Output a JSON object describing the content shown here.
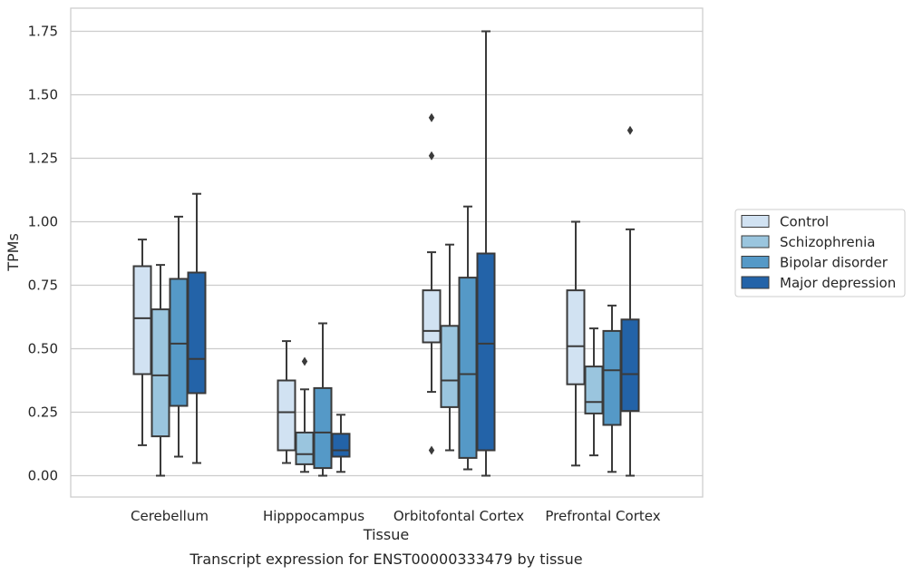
{
  "chart_data": {
    "type": "box",
    "title": "",
    "caption": "Transcript expression for ENST00000333479 by tissue",
    "xlabel": "Tissue",
    "ylabel": "TPMs",
    "ylim": [
      -0.08,
      1.84
    ],
    "yticks": [
      0.0,
      0.25,
      0.5,
      0.75,
      1.0,
      1.25,
      1.5,
      1.75
    ],
    "ytick_labels": [
      "0.00",
      "0.25",
      "0.50",
      "0.75",
      "1.00",
      "1.25",
      "1.50",
      "1.75"
    ],
    "grid": "horizontal",
    "legend": "right",
    "categories": [
      "Cerebellum",
      "Hipppocampus",
      "Orbitofontal Cortex",
      "Prefrontal Cortex"
    ],
    "series": [
      {
        "name": "Control",
        "color": "#d1e2f2",
        "boxes": [
          {
            "whislo": 0.12,
            "q1": 0.4,
            "med": 0.62,
            "q3": 0.825,
            "whishi": 0.93,
            "fliers": []
          },
          {
            "whislo": 0.05,
            "q1": 0.1,
            "med": 0.25,
            "q3": 0.375,
            "whishi": 0.53,
            "fliers": []
          },
          {
            "whislo": 0.33,
            "q1": 0.525,
            "med": 0.57,
            "q3": 0.73,
            "whishi": 0.88,
            "fliers": [
              0.1,
              1.26,
              1.41
            ]
          },
          {
            "whislo": 0.04,
            "q1": 0.36,
            "med": 0.51,
            "q3": 0.73,
            "whishi": 1.0,
            "fliers": []
          }
        ]
      },
      {
        "name": "Schizophrenia",
        "color": "#9ac5de",
        "boxes": [
          {
            "whislo": 0.0,
            "q1": 0.155,
            "med": 0.395,
            "q3": 0.655,
            "whishi": 0.83,
            "fliers": []
          },
          {
            "whislo": 0.015,
            "q1": 0.045,
            "med": 0.085,
            "q3": 0.17,
            "whishi": 0.34,
            "fliers": [
              0.45
            ]
          },
          {
            "whislo": 0.1,
            "q1": 0.27,
            "med": 0.375,
            "q3": 0.59,
            "whishi": 0.91,
            "fliers": []
          },
          {
            "whislo": 0.08,
            "q1": 0.245,
            "med": 0.29,
            "q3": 0.43,
            "whishi": 0.58,
            "fliers": []
          }
        ]
      },
      {
        "name": "Bipolar disorder",
        "color": "#5599c7",
        "boxes": [
          {
            "whislo": 0.075,
            "q1": 0.275,
            "med": 0.52,
            "q3": 0.775,
            "whishi": 1.02,
            "fliers": []
          },
          {
            "whislo": 0.0,
            "q1": 0.03,
            "med": 0.17,
            "q3": 0.345,
            "whishi": 0.6,
            "fliers": []
          },
          {
            "whislo": 0.025,
            "q1": 0.07,
            "med": 0.4,
            "q3": 0.78,
            "whishi": 1.06,
            "fliers": []
          },
          {
            "whislo": 0.015,
            "q1": 0.2,
            "med": 0.415,
            "q3": 0.57,
            "whishi": 0.67,
            "fliers": []
          }
        ]
      },
      {
        "name": "Major depression",
        "color": "#2363a8",
        "boxes": [
          {
            "whislo": 0.05,
            "q1": 0.325,
            "med": 0.46,
            "q3": 0.8,
            "whishi": 1.11,
            "fliers": []
          },
          {
            "whislo": 0.015,
            "q1": 0.075,
            "med": 0.1,
            "q3": 0.165,
            "whishi": 0.24,
            "fliers": []
          },
          {
            "whislo": 0.0,
            "q1": 0.1,
            "med": 0.52,
            "q3": 0.875,
            "whishi": 1.75,
            "fliers": []
          },
          {
            "whislo": 0.0,
            "q1": 0.255,
            "med": 0.4,
            "q3": 0.615,
            "whishi": 0.97,
            "fliers": [
              1.36
            ]
          }
        ]
      }
    ]
  }
}
